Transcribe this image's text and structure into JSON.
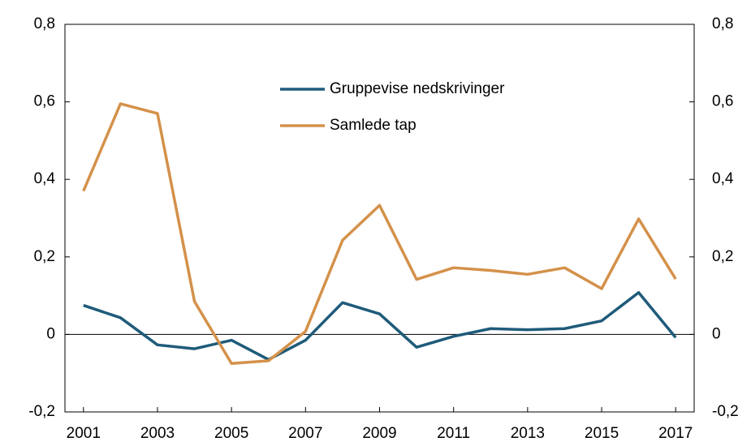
{
  "chart_data": {
    "type": "line",
    "x": [
      2001,
      2002,
      2003,
      2004,
      2005,
      2006,
      2007,
      2008,
      2009,
      2010,
      2011,
      2012,
      2013,
      2014,
      2015,
      2016,
      2017
    ],
    "series": [
      {
        "name": "Gruppevise nedskrivinger",
        "color": "#1f5b7a",
        "values": [
          0.075,
          0.043,
          -0.027,
          -0.037,
          -0.015,
          -0.065,
          -0.015,
          0.082,
          0.053,
          -0.033,
          -0.005,
          0.015,
          0.012,
          0.015,
          0.035,
          0.108,
          -0.008
        ]
      },
      {
        "name": "Samlede tap",
        "color": "#d4914a",
        "values": [
          0.37,
          0.595,
          0.57,
          0.085,
          -0.075,
          -0.068,
          0.008,
          0.243,
          0.333,
          0.142,
          0.172,
          0.165,
          0.155,
          0.172,
          0.118,
          0.298,
          0.143
        ]
      }
    ],
    "xlim": [
      2000.5,
      2017.5
    ],
    "xticks": [
      2001,
      2003,
      2005,
      2007,
      2009,
      2011,
      2013,
      2015,
      2017
    ],
    "ylim": [
      -0.2,
      0.8
    ],
    "yticks": [
      {
        "value": -0.2,
        "label": "-0,2"
      },
      {
        "value": 0.2,
        "label": "0,2"
      },
      {
        "value": 0.4,
        "label": "0,4"
      },
      {
        "value": 0.6,
        "label": "0,6"
      },
      {
        "value": 0.8,
        "label": "0,8"
      },
      0
    ],
    "y2lim": [
      -0.2,
      0.8
    ],
    "y2ticks": [
      {
        "value": -0.2,
        "label": "-0,2"
      },
      {
        "value": 0.2,
        "label": "0,2"
      },
      {
        "value": 0.4,
        "label": "0,4"
      },
      {
        "value": 0.6,
        "label": "0,6"
      },
      {
        "value": 0.8,
        "label": "0,8"
      },
      0
    ],
    "legend": "top"
  }
}
